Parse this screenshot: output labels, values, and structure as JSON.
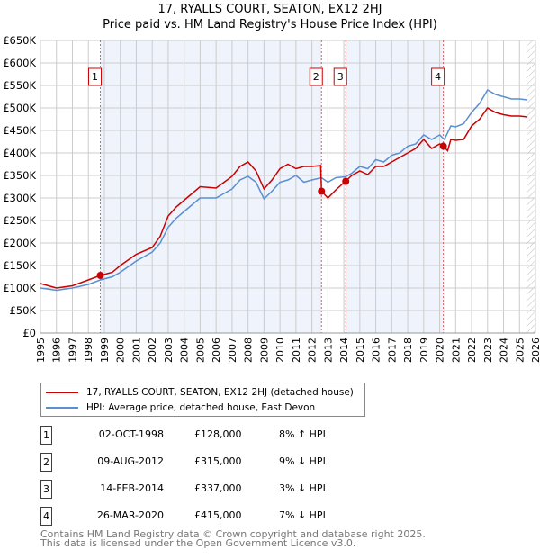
{
  "chart_data": {
    "type": "line",
    "title": "17, RYALLS COURT, SEATON, EX12 2HJ",
    "subtitle": "Price paid vs. HM Land Registry's House Price Index (HPI)",
    "xlim": [
      1995,
      2026
    ],
    "ylim": [
      0,
      650000
    ],
    "x_ticks": [
      "1995",
      "1996",
      "1997",
      "1998",
      "1999",
      "2000",
      "2001",
      "2002",
      "2003",
      "2004",
      "2005",
      "2006",
      "2007",
      "2008",
      "2009",
      "2010",
      "2011",
      "2012",
      "2013",
      "2014",
      "2015",
      "2016",
      "2017",
      "2018",
      "2019",
      "2020",
      "2021",
      "2022",
      "2023",
      "2024",
      "2025",
      "2026"
    ],
    "y_ticks": [
      "£0",
      "£50K",
      "£100K",
      "£150K",
      "£200K",
      "£250K",
      "£300K",
      "£350K",
      "£400K",
      "£450K",
      "£500K",
      "£550K",
      "£600K",
      "£650K"
    ],
    "grid": true,
    "series": [
      {
        "name": "17, RYALLS COURT, SEATON, EX12 2HJ (detached house)",
        "color": "#cc0000",
        "x": [
          1995,
          1996,
          1997,
          1998,
          1998.75,
          1999.5,
          2000,
          2001,
          2002,
          2002.5,
          2003,
          2003.5,
          2004,
          2004.5,
          2005,
          2006,
          2006.5,
          2007,
          2007.5,
          2008,
          2008.5,
          2009,
          2009.5,
          2010,
          2010.5,
          2011,
          2011.5,
          2012,
          2012.55,
          2012.6,
          2013,
          2013.5,
          2014.1,
          2014.5,
          2015,
          2015.5,
          2016,
          2016.5,
          2017,
          2017.5,
          2018,
          2018.5,
          2019,
          2019.5,
          2020,
          2020.23,
          2020.5,
          2020.7,
          2021,
          2021.5,
          2022,
          2022.5,
          2023,
          2023.5,
          2024,
          2024.5,
          2025,
          2025.5
        ],
        "y": [
          110,
          100,
          105,
          118,
          128,
          135,
          150,
          175,
          190,
          215,
          260,
          280,
          295,
          310,
          325,
          322,
          335,
          348,
          370,
          380,
          360,
          320,
          340,
          365,
          375,
          365,
          370,
          370,
          372,
          315,
          300,
          318,
          337,
          350,
          360,
          352,
          370,
          370,
          380,
          390,
          400,
          410,
          430,
          410,
          420,
          415,
          405,
          430,
          428,
          430,
          460,
          475,
          500,
          490,
          485,
          482,
          482,
          480
        ]
      },
      {
        "name": "HPI: Average price, detached house, East Devon",
        "color": "#5b8fd0",
        "x": [
          1995,
          1996,
          1997,
          1998,
          1998.75,
          1999.5,
          2000,
          2001,
          2002,
          2002.5,
          2003,
          2003.5,
          2004,
          2004.5,
          2005,
          2006,
          2006.5,
          2007,
          2007.5,
          2008,
          2008.5,
          2009,
          2009.5,
          2010,
          2010.5,
          2011,
          2011.5,
          2012,
          2012.6,
          2013,
          2013.5,
          2014.1,
          2014.5,
          2015,
          2015.5,
          2016,
          2016.5,
          2017,
          2017.5,
          2018,
          2018.5,
          2019,
          2019.5,
          2020,
          2020.3,
          2020.7,
          2021,
          2021.5,
          2022,
          2022.5,
          2023,
          2023.5,
          2024,
          2024.5,
          2025,
          2025.5
        ],
        "y": [
          100,
          95,
          100,
          108,
          118,
          125,
          135,
          160,
          180,
          200,
          235,
          255,
          270,
          285,
          300,
          300,
          310,
          320,
          340,
          348,
          335,
          298,
          315,
          335,
          340,
          350,
          335,
          340,
          345,
          335,
          345,
          347,
          355,
          370,
          365,
          385,
          380,
          395,
          400,
          415,
          420,
          440,
          430,
          440,
          430,
          460,
          458,
          465,
          490,
          510,
          540,
          530,
          525,
          520,
          520,
          518
        ]
      }
    ],
    "y_unit": "thousand GBP",
    "sales": [
      {
        "label": "1",
        "x": 1998.75,
        "date": "02-OCT-1998",
        "price": "£128,000",
        "value": 128,
        "hpi": "8% ↑ HPI"
      },
      {
        "label": "2",
        "x": 2012.6,
        "date": "09-AUG-2012",
        "price": "£315,000",
        "value": 315,
        "hpi": "9% ↓ HPI"
      },
      {
        "label": "3",
        "x": 2014.12,
        "date": "14-FEB-2014",
        "price": "£337,000",
        "value": 337,
        "hpi": "3% ↓ HPI"
      },
      {
        "label": "4",
        "x": 2020.23,
        "date": "26-MAR-2020",
        "price": "£415,000",
        "value": 415,
        "hpi": "7% ↓ HPI"
      }
    ],
    "shaded_ranges": [
      [
        1998.75,
        2012.6
      ],
      [
        2014.12,
        2020.23
      ]
    ],
    "forecast_from": 2025.5
  },
  "footer": {
    "line1": "Contains HM Land Registry data © Crown copyright and database right 2025.",
    "line2": "This data is licensed under the Open Government Licence v3.0."
  }
}
